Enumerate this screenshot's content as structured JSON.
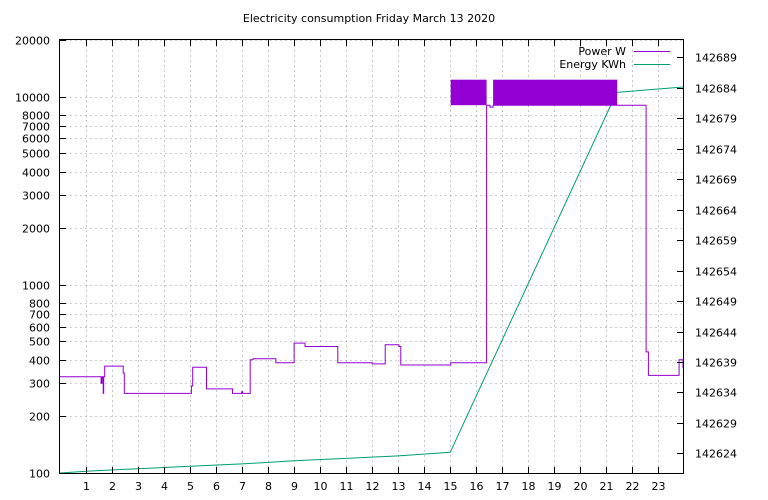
{
  "chart_data": {
    "type": "line",
    "title": "Electricity consumption Friday March 13 2020",
    "xlabel": "",
    "ylabel": "",
    "x_ticks": [
      1,
      2,
      3,
      4,
      5,
      6,
      7,
      8,
      9,
      10,
      11,
      12,
      13,
      14,
      15,
      16,
      17,
      18,
      19,
      20,
      21,
      22,
      23
    ],
    "xlim": [
      0,
      23.95
    ],
    "y_scale": "log",
    "ylim": [
      100,
      20000
    ],
    "y_ticks": [
      100,
      200,
      300,
      400,
      500,
      600,
      700,
      800,
      1000,
      2000,
      3000,
      4000,
      5000,
      6000,
      7000,
      8000,
      10000,
      20000
    ],
    "y2lim": [
      142620.8,
      142691.8
    ],
    "y2_ticks": [
      142624,
      142629,
      142634,
      142639,
      142644,
      142649,
      142654,
      142659,
      142664,
      142669,
      142674,
      142679,
      142684,
      142689
    ],
    "grid": true,
    "legend": "top-right",
    "series": [
      {
        "name": "Power W",
        "axis": "left",
        "color": "#9400d3",
        "step": true,
        "x": [
          0,
          1.58,
          1.62,
          1.66,
          1.68,
          1.72,
          2.43,
          2.47,
          2.53,
          4.99,
          5.05,
          5.1,
          5.46,
          5.63,
          6.55,
          6.63,
          6.98,
          7.02,
          7.31,
          7.42,
          8.3,
          8.42,
          9.0,
          9.42,
          9.5,
          10.68,
          11.9,
          12.0,
          12.3,
          12.5,
          12.97,
          13.03,
          13.1,
          13.72,
          14.54,
          15.02,
          16.4,
          16.53,
          16.65,
          21.42,
          22.53,
          22.58,
          22.62,
          23.8,
          23.95
        ],
        "y": [
          325,
          300,
          325,
          265,
          325,
          370,
          340,
          265,
          265,
          265,
          290,
          365,
          365,
          280,
          280,
          265,
          270,
          265,
          400,
          405,
          385,
          385,
          490,
          470,
          470,
          385,
          385,
          380,
          380,
          480,
          480,
          470,
          375,
          375,
          375,
          385,
          9000,
          8800,
          9000,
          9000,
          440,
          440,
          330,
          400,
          360
        ]
      },
      {
        "name": "Energy KWh",
        "axis": "right",
        "color": "#009e73",
        "x": [
          0,
          1.0,
          3.0,
          5.0,
          7.0,
          9.0,
          11.0,
          13.0,
          15.0,
          21.4,
          23.95
        ],
        "y": [
          142620.8,
          142621.1,
          142621.5,
          142621.9,
          142622.3,
          142622.8,
          142623.2,
          142623.6,
          142624.2,
          142683.2,
          142684.1
        ]
      }
    ],
    "bands": [
      {
        "series": "Power W",
        "x0": 15.02,
        "x1": 16.4,
        "y0": 9000,
        "y1": 12300
      },
      {
        "series": "Power W",
        "x0": 16.65,
        "x1": 21.42,
        "y0": 9000,
        "y1": 12300
      }
    ]
  }
}
